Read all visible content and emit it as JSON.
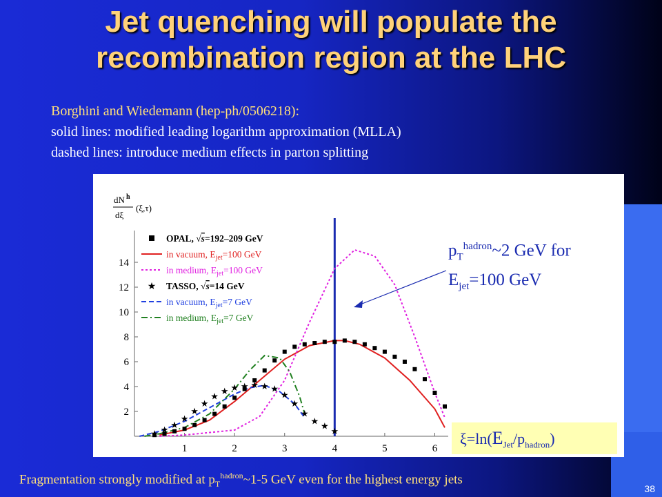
{
  "title_lines": [
    "Jet  quenching will populate the",
    "recombination region at the LHC"
  ],
  "subtitle": {
    "ref": "Borghini and Wiedemann (hep-ph/0506218):",
    "line1": "solid lines: modified leading logarithm approximation (MLLA)",
    "line2": "dashed lines: introduce medium effects in parton splitting"
  },
  "callout": {
    "p": "p",
    "T": "T",
    "hadron": "hadron",
    "rest1": "~2 GeV for",
    "E": "E",
    "jet": "jet",
    "rest2": "=100 GeV"
  },
  "xi_box": {
    "lead": "ξ=ln(",
    "E": "E",
    "jet": "Jet",
    "slash": "/p",
    "hadron": "hadron",
    "close": ")"
  },
  "footer": {
    "lead": "Fragmentation strongly modified at p",
    "T": "T",
    "hadron": "hadron",
    "rest": "~1-5 GeV even for the highest energy jets"
  },
  "page_number": "38",
  "colors": {
    "title": "#ffd27a",
    "subtitle": "#ffe07a",
    "callout": "#1a2bb0",
    "vertical_line": "#1a2bb0"
  },
  "chart_data": {
    "type": "line",
    "ylabel_parts": {
      "top": "dN",
      "sup": "h",
      "bottom": "dξ",
      "args": "(ξ,τ)"
    },
    "x_ticks": [
      "1",
      "2",
      "3",
      "4",
      "5",
      "6"
    ],
    "y_ticks": [
      "2",
      "4",
      "6",
      "8",
      "10",
      "12",
      "14"
    ],
    "xlim": [
      0,
      6.2
    ],
    "ylim": [
      0,
      16
    ],
    "vertical_line_x": 4,
    "legend": [
      {
        "style": "square",
        "color": "#000000",
        "pre": "OPAL, ",
        "sqrt": "s",
        "post": "=192–209 GeV"
      },
      {
        "style": "solid",
        "color": "#e02020",
        "pre": "in vacuum, E",
        "sub": "jet",
        "post": "=100 GeV"
      },
      {
        "style": "dotted",
        "color": "#e020e0",
        "pre": "in medium, E",
        "sub": "jet",
        "post": "=100 GeV"
      },
      {
        "style": "star",
        "color": "#000000",
        "pre": "TASSO, ",
        "sqrt": "s",
        "post": "=14 GeV"
      },
      {
        "style": "dashed",
        "color": "#2040e0",
        "pre": "in vacuum, E",
        "sub": "jet",
        "post": "=7 GeV"
      },
      {
        "style": "dashdot",
        "color": "#208020",
        "pre": "in medium, E",
        "sub": "jet",
        "post": "=7 GeV"
      }
    ],
    "series": [
      {
        "name": "in vacuum, Ejet=100 GeV",
        "style": "solid",
        "color": "#e02020",
        "x": [
          0.5,
          1.0,
          1.5,
          2.0,
          2.5,
          3.0,
          3.5,
          4.0,
          4.2,
          4.5,
          5.0,
          5.5,
          6.0,
          6.2
        ],
        "y": [
          0.1,
          0.5,
          1.3,
          2.8,
          4.5,
          6.2,
          7.3,
          7.7,
          7.7,
          7.4,
          6.3,
          4.5,
          2.2,
          0.7
        ]
      },
      {
        "name": "in medium, Ejet=100 GeV",
        "style": "dotted",
        "color": "#e020e0",
        "x": [
          0.5,
          1.0,
          2.0,
          2.5,
          3.0,
          3.5,
          4.0,
          4.4,
          4.8,
          5.2,
          5.6,
          6.0,
          6.2
        ],
        "y": [
          0.0,
          0.1,
          0.5,
          1.6,
          4.5,
          9.2,
          13.5,
          15.0,
          14.5,
          12.2,
          8.0,
          3.5,
          1.5
        ]
      },
      {
        "name": "in vacuum, Ejet=7 GeV",
        "style": "dashed",
        "color": "#2040e0",
        "x": [
          0.1,
          0.5,
          1.0,
          1.5,
          2.0,
          2.3,
          2.6,
          2.9,
          3.2,
          3.4
        ],
        "y": [
          0.0,
          0.4,
          1.2,
          2.3,
          3.4,
          3.9,
          4.1,
          3.6,
          2.6,
          1.5
        ]
      },
      {
        "name": "in medium, Ejet=7 GeV",
        "style": "dashdot",
        "color": "#208020",
        "x": [
          0.2,
          0.5,
          1.0,
          1.5,
          2.0,
          2.3,
          2.6,
          2.9,
          3.1,
          3.3,
          3.4
        ],
        "y": [
          0.0,
          0.2,
          0.7,
          1.8,
          3.8,
          5.3,
          6.5,
          6.3,
          5.2,
          3.2,
          1.8
        ]
      },
      {
        "name": "OPAL",
        "style": "square",
        "color": "#000000",
        "x": [
          0.4,
          0.6,
          0.8,
          1.0,
          1.2,
          1.4,
          1.6,
          1.8,
          2.0,
          2.2,
          2.4,
          2.6,
          2.8,
          3.0,
          3.2,
          3.4,
          3.6,
          3.8,
          4.0,
          4.2,
          4.4,
          4.6,
          4.8,
          5.0,
          5.2,
          5.4,
          5.6,
          5.8,
          6.0,
          6.2
        ],
        "y": [
          0.1,
          0.2,
          0.4,
          0.6,
          0.9,
          1.3,
          1.8,
          2.4,
          3.1,
          3.8,
          4.5,
          5.3,
          6.1,
          6.8,
          7.2,
          7.4,
          7.5,
          7.6,
          7.6,
          7.7,
          7.6,
          7.4,
          7.1,
          6.8,
          6.4,
          6.0,
          5.4,
          4.6,
          3.5,
          2.4
        ]
      },
      {
        "name": "TASSO",
        "style": "star",
        "color": "#000000",
        "x": [
          0.4,
          0.6,
          0.8,
          1.0,
          1.2,
          1.4,
          1.6,
          1.8,
          2.0,
          2.2,
          2.4,
          2.6,
          2.8,
          3.0,
          3.2,
          3.4,
          3.6,
          3.8,
          4.0
        ],
        "y": [
          0.2,
          0.5,
          0.9,
          1.4,
          2.0,
          2.6,
          3.2,
          3.6,
          3.9,
          4.0,
          4.1,
          4.0,
          3.8,
          3.3,
          2.6,
          1.8,
          1.2,
          0.8,
          0.4
        ]
      }
    ]
  }
}
